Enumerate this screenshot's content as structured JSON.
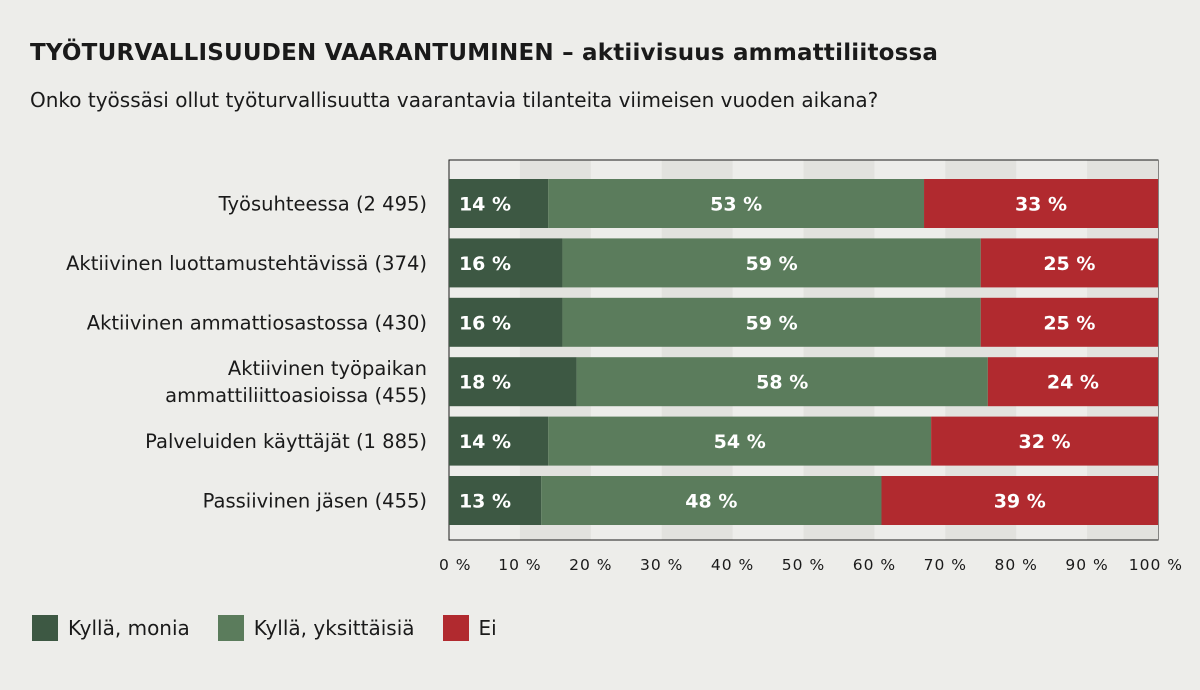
{
  "title": "TYÖTURVALLISUUDEN VAARANTUMINEN – aktiivisuus ammattiliitossa",
  "subtitle": "Onko työssäsi ollut työturvallisuutta vaarantavia tilanteita viimeisen vuoden aikana?",
  "colors": {
    "background": "#ededea",
    "band": "#e2e2de",
    "dark_green": "#3d5843",
    "light_green": "#5b7c5c",
    "red": "#b12a2f"
  },
  "chart_data": {
    "type": "bar",
    "orientation": "horizontal",
    "stacked": true,
    "categories": [
      [
        "Työsuhteessa (2 495)"
      ],
      [
        "Aktiivinen luottamustehtävissä (374)"
      ],
      [
        "Aktiivinen ammattiosastossa (430)"
      ],
      [
        "Aktiivinen työpaikan",
        "ammattiliittoasioissa (455)"
      ],
      [
        "Palveluiden käyttäjät (1 885)"
      ],
      [
        "Passiivinen jäsen (455)"
      ]
    ],
    "series": [
      {
        "name": "Kyllä, monia",
        "color": "#3d5843",
        "values": [
          14,
          16,
          16,
          18,
          14,
          13
        ],
        "labels": [
          "14 %",
          "16 %",
          "16 %",
          "18 %",
          "14 %",
          "13 %"
        ]
      },
      {
        "name": "Kyllä, yksittäisiä",
        "color": "#5b7c5c",
        "values": [
          53,
          59,
          59,
          58,
          54,
          48
        ],
        "labels": [
          "53 %",
          "59 %",
          "59 %",
          "58 %",
          "54 %",
          "48 %"
        ]
      },
      {
        "name": "Ei",
        "color": "#b12a2f",
        "values": [
          33,
          25,
          25,
          24,
          32,
          39
        ],
        "labels": [
          "33 %",
          "25 %",
          "25 %",
          "24 %",
          "32 %",
          "39 %"
        ]
      }
    ],
    "xlim": [
      0,
      100
    ],
    "xticks": [
      0,
      10,
      20,
      30,
      40,
      50,
      60,
      70,
      80,
      90,
      100
    ],
    "xtick_labels": [
      "0 %",
      "10 %",
      "20 %",
      "30 %",
      "40 %",
      "50 %",
      "60 %",
      "70 %",
      "80 %",
      "90 %",
      "100 %"
    ],
    "legend_position": "bottom-left",
    "grid": "alternating vertical bands"
  }
}
